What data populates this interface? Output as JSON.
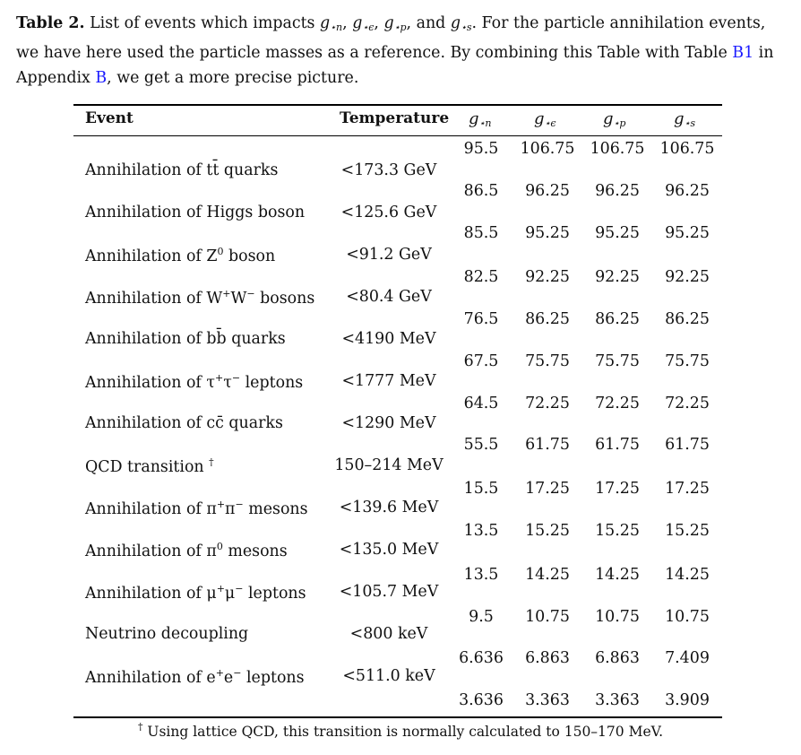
{
  "caption": {
    "label": "Table 2.",
    "text_1": " List of events which impacts ",
    "g_symbols": [
      {
        "base": "g",
        "sub": "⋆n"
      },
      {
        "base": "g",
        "sub": "⋆ϵ"
      },
      {
        "base": "g",
        "sub": "⋆p"
      },
      {
        "base": "g",
        "sub": "⋆s"
      }
    ],
    "sep_1": ", ",
    "sep_2": ", ",
    "sep_3": ", and ",
    "text_2": ". For the particle annihilation events, we have here used the particle masses as a reference. By combining this Table with Table ",
    "link_1": "B1",
    "text_3": " in Appendix ",
    "link_2": "B",
    "text_4": ", we get a more precise picture.",
    "link_color": "#1a1aff"
  },
  "table": {
    "headers": {
      "event": "Event",
      "temperature": "Temperature",
      "g_n": {
        "base": "g",
        "sub": "⋆n"
      },
      "g_e": {
        "base": "g",
        "sub": "⋆ϵ"
      },
      "g_p": {
        "base": "g",
        "sub": "⋆p"
      },
      "g_s": {
        "base": "g",
        "sub": "⋆s"
      }
    },
    "events": [
      {
        "pre": "Annihilation of t",
        "mid": "t̄",
        "post": " quarks",
        "temp": "<173.3 GeV"
      },
      {
        "pre": "Annihilation of Higgs boson",
        "mid": "",
        "post": "",
        "temp": "<125.6 GeV"
      },
      {
        "pre": "Annihilation of Z",
        "sup": "0",
        "post": " boson",
        "temp": "<91.2 GeV"
      },
      {
        "pre": "Annihilation of W",
        "sup": "+",
        "mid": "W",
        "sup2": "−",
        "post": " bosons",
        "temp": "<80.4 GeV"
      },
      {
        "pre": "Annihilation of b",
        "mid": "b̄",
        "post": " quarks",
        "temp": "<4190 MeV"
      },
      {
        "pre": "Annihilation of τ",
        "sup": "+",
        "mid": "τ",
        "sup2": "−",
        "post": " leptons",
        "temp": "<1777 MeV"
      },
      {
        "pre": "Annihilation of c",
        "mid": "c̄",
        "post": " quarks",
        "temp": "<1290 MeV"
      },
      {
        "pre": "QCD transition ",
        "sup": "†",
        "post": "",
        "temp": "150–214 MeV"
      },
      {
        "pre": "Annihilation of π",
        "sup": "+",
        "mid": "π",
        "sup2": "−",
        "post": " mesons",
        "temp": "<139.6 MeV"
      },
      {
        "pre": "Annihilation of π",
        "sup": "0",
        "post": " mesons",
        "temp": "<135.0 MeV"
      },
      {
        "pre": "Annihilation of μ",
        "sup": "+",
        "mid": "μ",
        "sup2": "−",
        "post": " leptons",
        "temp": "<105.7 MeV"
      },
      {
        "pre": "Neutrino decoupling",
        "post": "",
        "temp": "<800 keV"
      },
      {
        "pre": "Annihilation of e",
        "sup": "+",
        "mid": "e",
        "sup2": "−",
        "post": " leptons",
        "temp": "<511.0 keV"
      }
    ],
    "values": [
      [
        "95.5",
        "106.75",
        "106.75",
        "106.75"
      ],
      [
        "86.5",
        "96.25",
        "96.25",
        "96.25"
      ],
      [
        "85.5",
        "95.25",
        "95.25",
        "95.25"
      ],
      [
        "82.5",
        "92.25",
        "92.25",
        "92.25"
      ],
      [
        "76.5",
        "86.25",
        "86.25",
        "86.25"
      ],
      [
        "67.5",
        "75.75",
        "75.75",
        "75.75"
      ],
      [
        "64.5",
        "72.25",
        "72.25",
        "72.25"
      ],
      [
        "55.5",
        "61.75",
        "61.75",
        "61.75"
      ],
      [
        "15.5",
        "17.25",
        "17.25",
        "17.25"
      ],
      [
        "13.5",
        "15.25",
        "15.25",
        "15.25"
      ],
      [
        "13.5",
        "14.25",
        "14.25",
        "14.25"
      ],
      [
        "9.5",
        "10.75",
        "10.75",
        "10.75"
      ],
      [
        "6.636",
        "6.863",
        "6.863",
        "7.409"
      ],
      [
        "3.636",
        "3.363",
        "3.363",
        "3.909"
      ]
    ]
  },
  "footnote": {
    "mark": "†",
    "text": " Using lattice QCD, this transition is normally calculated to 150–170 MeV."
  }
}
